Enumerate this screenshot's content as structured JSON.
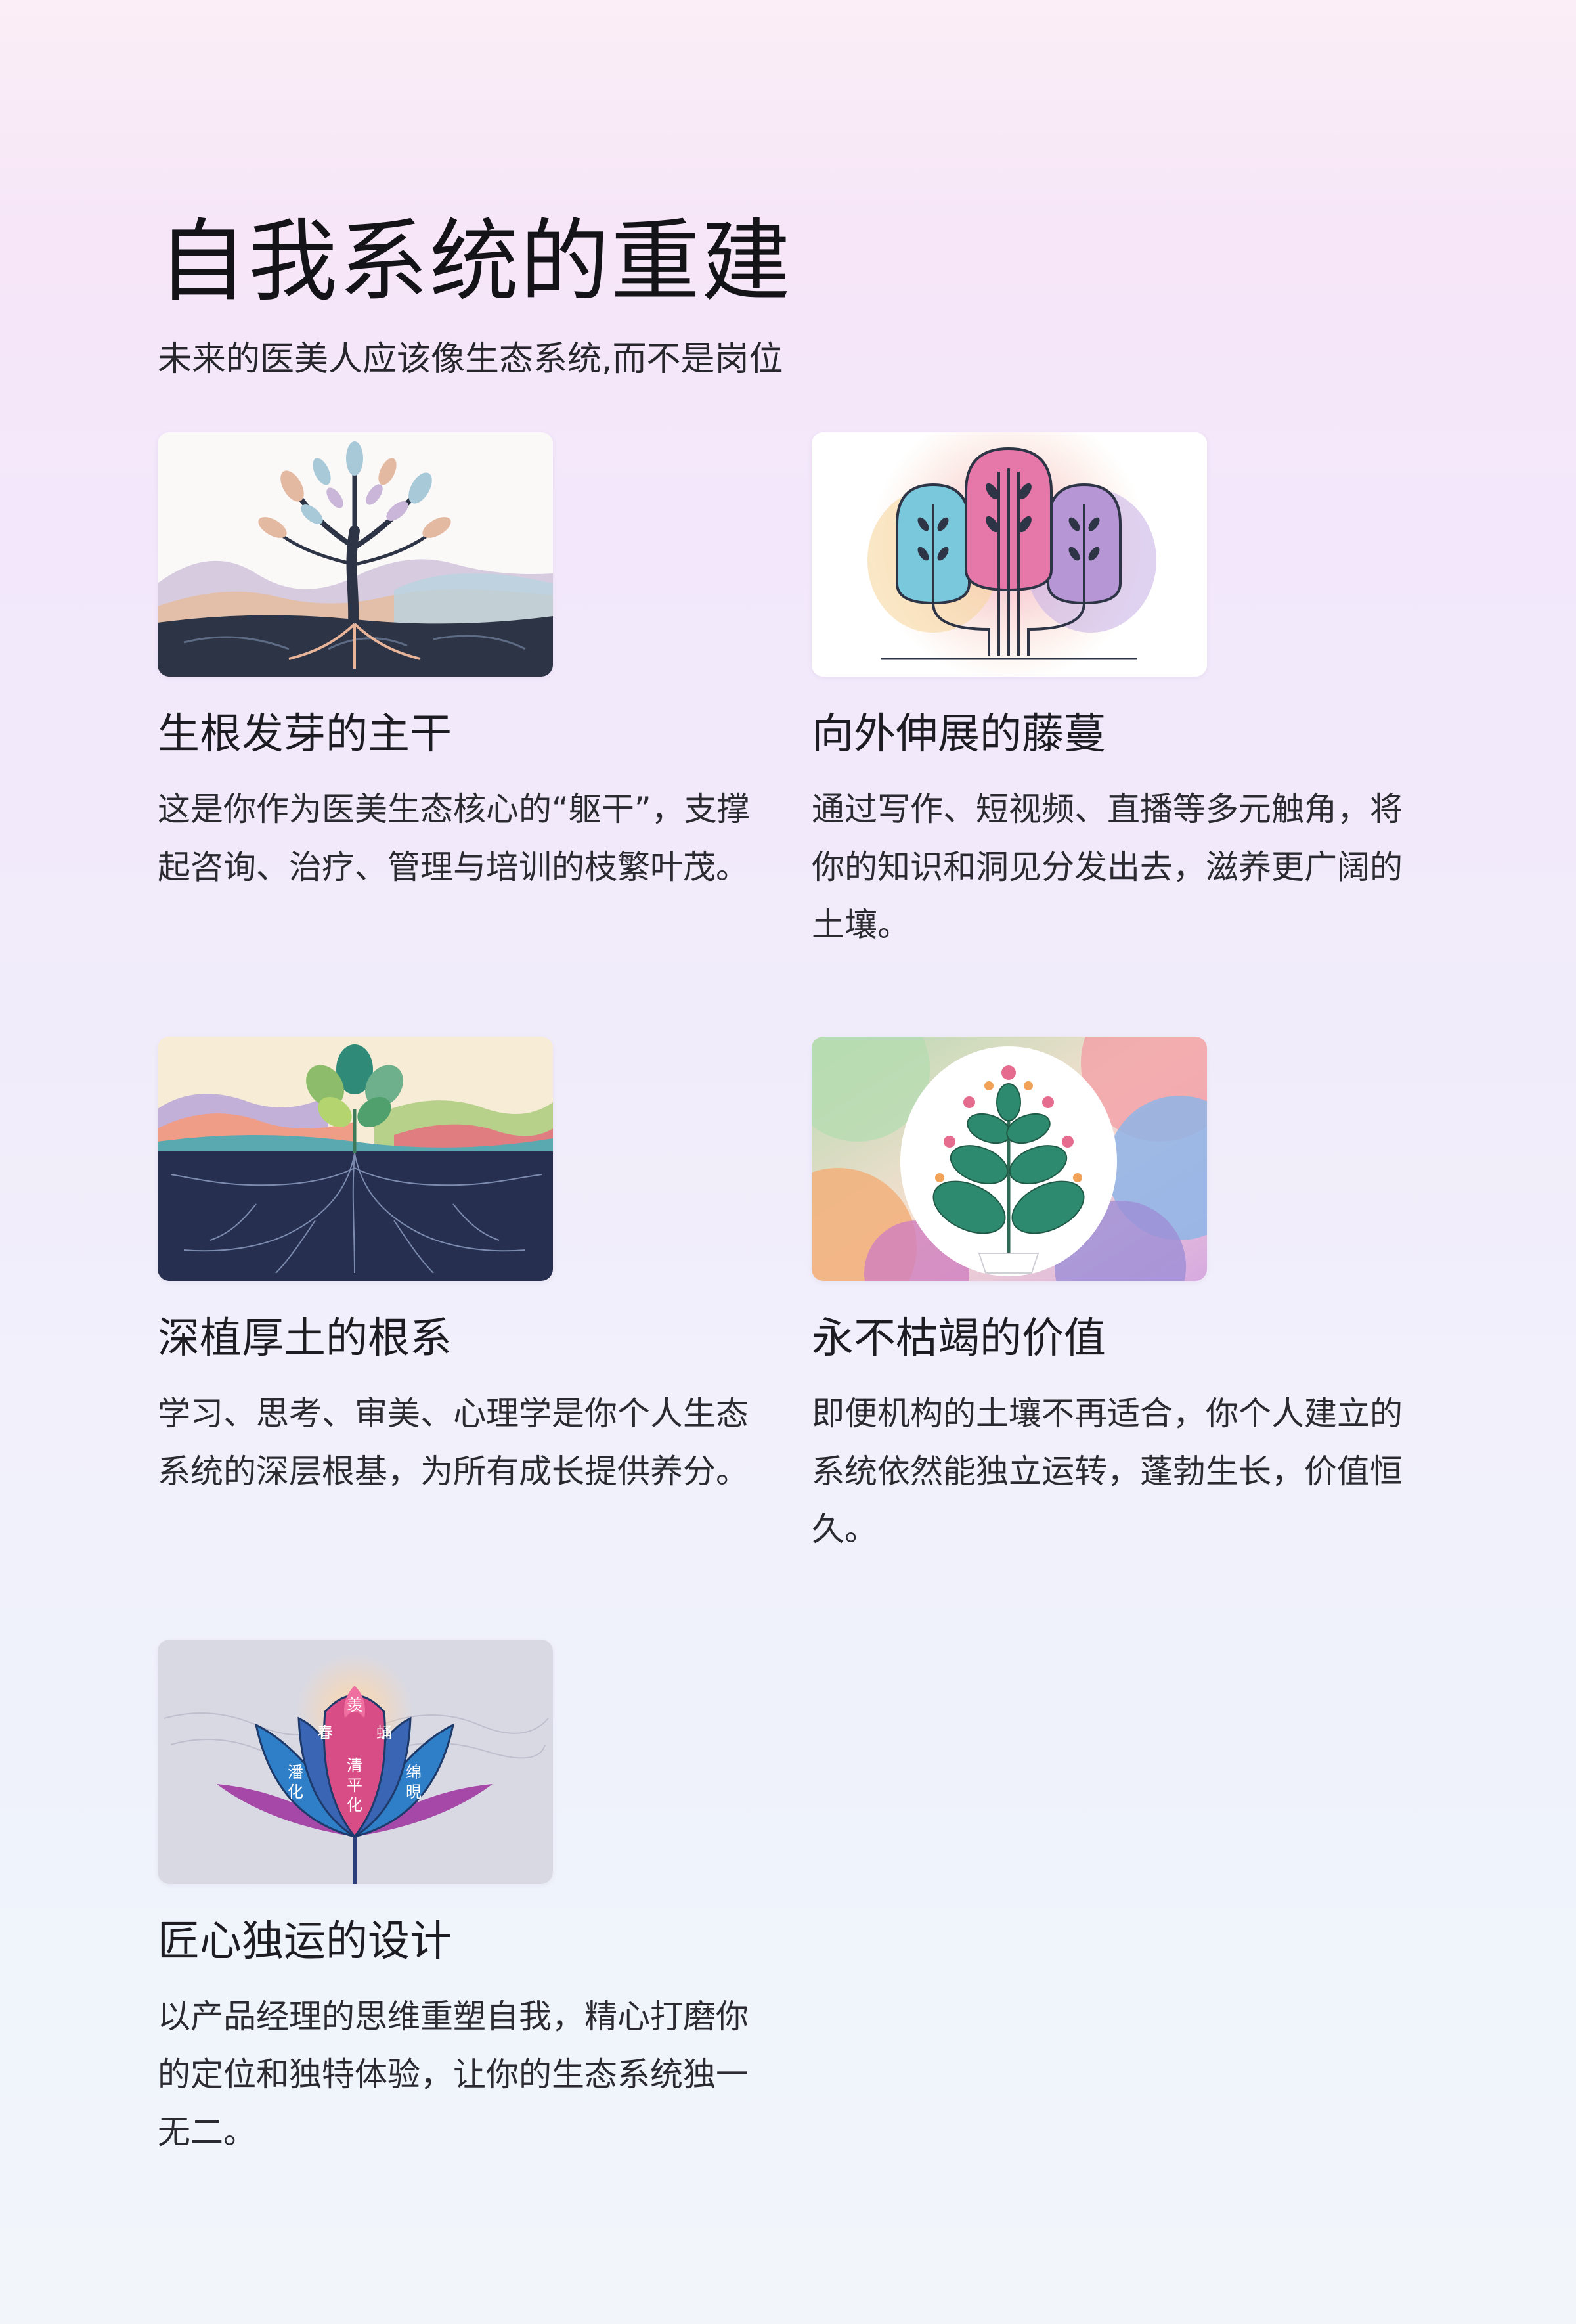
{
  "page": {
    "title": "自我系统的重建",
    "subtitle": "未来的医美人应该像生态系统,而不是岗位"
  },
  "cards": [
    {
      "title": "生根发芽的主干",
      "description": "这是你作为医美生态核心的“躯干”，支撑起咨询、治疗、管理与培训的枝繁叶茂。",
      "image_icon": "tree-with-roots-illustration"
    },
    {
      "title": "向外伸展的藤蔓",
      "description": "通过写作、短视频、直播等多元触角，将你的知识和洞见分发出去，滋养更广阔的土壤。",
      "image_icon": "three-branch-tree-illustration"
    },
    {
      "title": "深植厚土的根系",
      "description": "学习、思考、审美、心理学是你个人生态系统的深层根基，为所有成长提供养分。",
      "image_icon": "sprout-with-deep-roots-illustration"
    },
    {
      "title": "永不枯竭的价值",
      "description": "即便机构的土壤不再适合，你个人建立的系统依然能独立运转，蓬勃生长，价值恒久。",
      "image_icon": "flowering-plant-illustration"
    },
    {
      "title": "匠心独运的设计",
      "description": "以产品经理的思维重塑自我，精心打磨你的定位和独特体验，让你的生态系统独一无二。",
      "image_icon": "lotus-illustration",
      "image_text": {
        "top": "羡",
        "upper_left": "春",
        "upper_right": "蛹",
        "left": "潘化",
        "center": "清平化",
        "right": "绵晛"
      }
    }
  ]
}
